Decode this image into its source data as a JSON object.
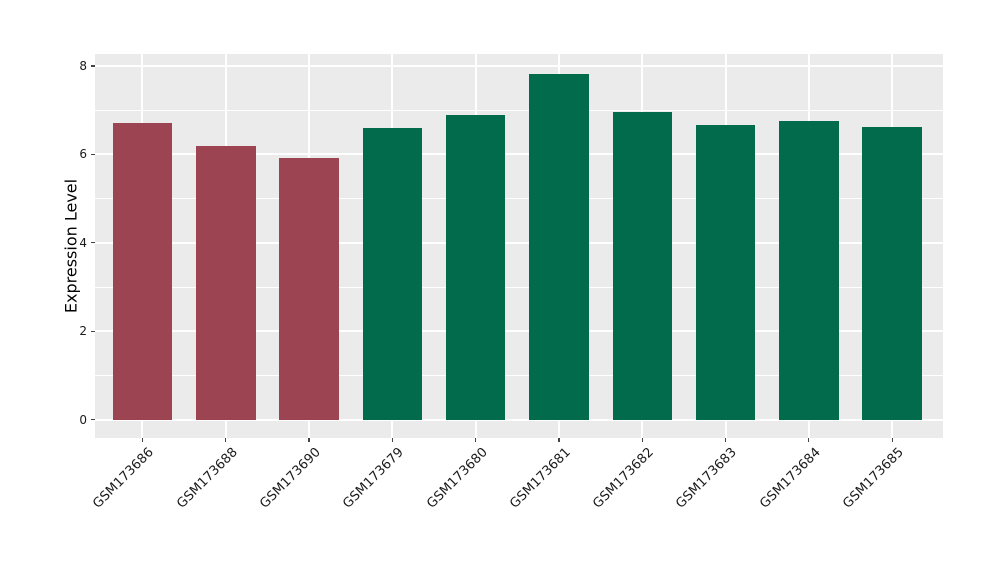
{
  "chart_data": {
    "type": "bar",
    "title": "",
    "xlabel": "",
    "ylabel": "Expression Level",
    "categories": [
      "GSM173686",
      "GSM173688",
      "GSM173690",
      "GSM173679",
      "GSM173680",
      "GSM173681",
      "GSM173682",
      "GSM173683",
      "GSM173684",
      "GSM173685"
    ],
    "values": [
      6.7,
      6.2,
      5.93,
      6.6,
      6.88,
      7.81,
      6.97,
      6.66,
      6.76,
      6.62
    ],
    "bar_colors": [
      "#9c4451",
      "#9c4451",
      "#9c4451",
      "#026b4b",
      "#026b4b",
      "#026b4b",
      "#026b4b",
      "#026b4b",
      "#026b4b",
      "#026b4b"
    ],
    "yticks": [
      0,
      2,
      4,
      6,
      8
    ],
    "yticks_minor": [
      1,
      3,
      5,
      7
    ],
    "ylim": [
      -0.41,
      8.27
    ],
    "grid": true,
    "legend": false,
    "style": {
      "panel_background": "#ebebeb",
      "grid_color": "#ffffff",
      "tick_color": "#444444",
      "tick_label_color": "#1a1a1a",
      "x_tick_label_rotation_deg": 45
    }
  }
}
